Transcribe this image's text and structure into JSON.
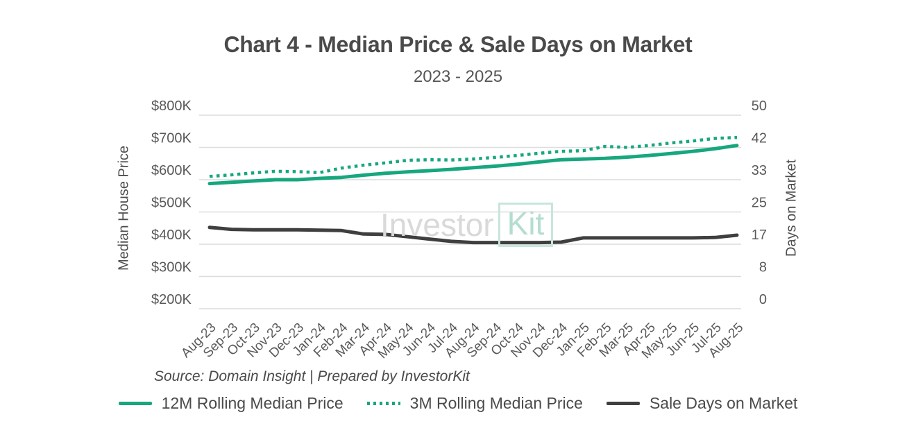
{
  "header": {
    "title": "Chart 4 - Median Price & Sale Days on Market",
    "subtitle": "2023 - 2025"
  },
  "chart_data": {
    "type": "line",
    "title": "Chart 4 - Median Price & Sale Days on Market",
    "subtitle": "2023 - 2025",
    "grid": "horizontal",
    "legend_position": "bottom",
    "categories": [
      "Aug-23",
      "Sep-23",
      "Oct-23",
      "Nov-23",
      "Dec-23",
      "Jan-24",
      "Feb-24",
      "Mar-24",
      "Apr-24",
      "May-24",
      "Jun-24",
      "Jul-24",
      "Aug-24",
      "Sep-24",
      "Oct-24",
      "Nov-24",
      "Dec-24",
      "Jan-25",
      "Feb-25",
      "Mar-25",
      "Apr-25",
      "May-25",
      "Jun-25",
      "Jul-25",
      "Aug-25"
    ],
    "y_left": {
      "label": "Median House Price",
      "ticks": [
        "$800K",
        "$700K",
        "$600K",
        "$500K",
        "$400K",
        "$300K",
        "$200K"
      ],
      "range_k": [
        200,
        800
      ]
    },
    "y_right": {
      "label": "Days on Market",
      "ticks": [
        "50",
        "42",
        "33",
        "25",
        "17",
        "8",
        "0"
      ],
      "range": [
        0,
        50
      ]
    },
    "series": [
      {
        "name": "12M Rolling Median Price",
        "axis": "left",
        "style": "solid",
        "color": "#17a77e",
        "values_k": [
          588,
          592,
          596,
          600,
          600,
          604,
          607,
          614,
          620,
          624,
          628,
          632,
          637,
          642,
          648,
          655,
          662,
          664,
          666,
          670,
          675,
          681,
          688,
          696,
          706
        ]
      },
      {
        "name": "3M Rolling Median Price",
        "axis": "left",
        "style": "dotted",
        "color": "#17a77e",
        "values_k": [
          610,
          615,
          621,
          626,
          625,
          622,
          636,
          645,
          652,
          660,
          662,
          661,
          664,
          669,
          675,
          682,
          688,
          690,
          703,
          700,
          706,
          714,
          720,
          728,
          731
        ]
      },
      {
        "name": "Sale Days on Market",
        "axis": "right",
        "style": "solid",
        "color": "#3f3f3f",
        "values": [
          21,
          20.5,
          20.4,
          20.4,
          20.4,
          20.3,
          20.2,
          19.3,
          19.2,
          18.6,
          18.0,
          17.4,
          17.1,
          17.1,
          17.1,
          17.1,
          17.2,
          18.3,
          18.3,
          18.3,
          18.3,
          18.3,
          18.3,
          18.4,
          19.0
        ]
      }
    ]
  },
  "watermark": {
    "part1": "Investor",
    "part2": "Kit"
  },
  "source": {
    "text": "Source: Domain Insight | Prepared by InvestorKit"
  },
  "colors": {
    "accent_teal": "#17a77e",
    "line_gray": "#3f3f3f",
    "gridline": "#dcdcdc",
    "text": "#4a4a4a"
  }
}
